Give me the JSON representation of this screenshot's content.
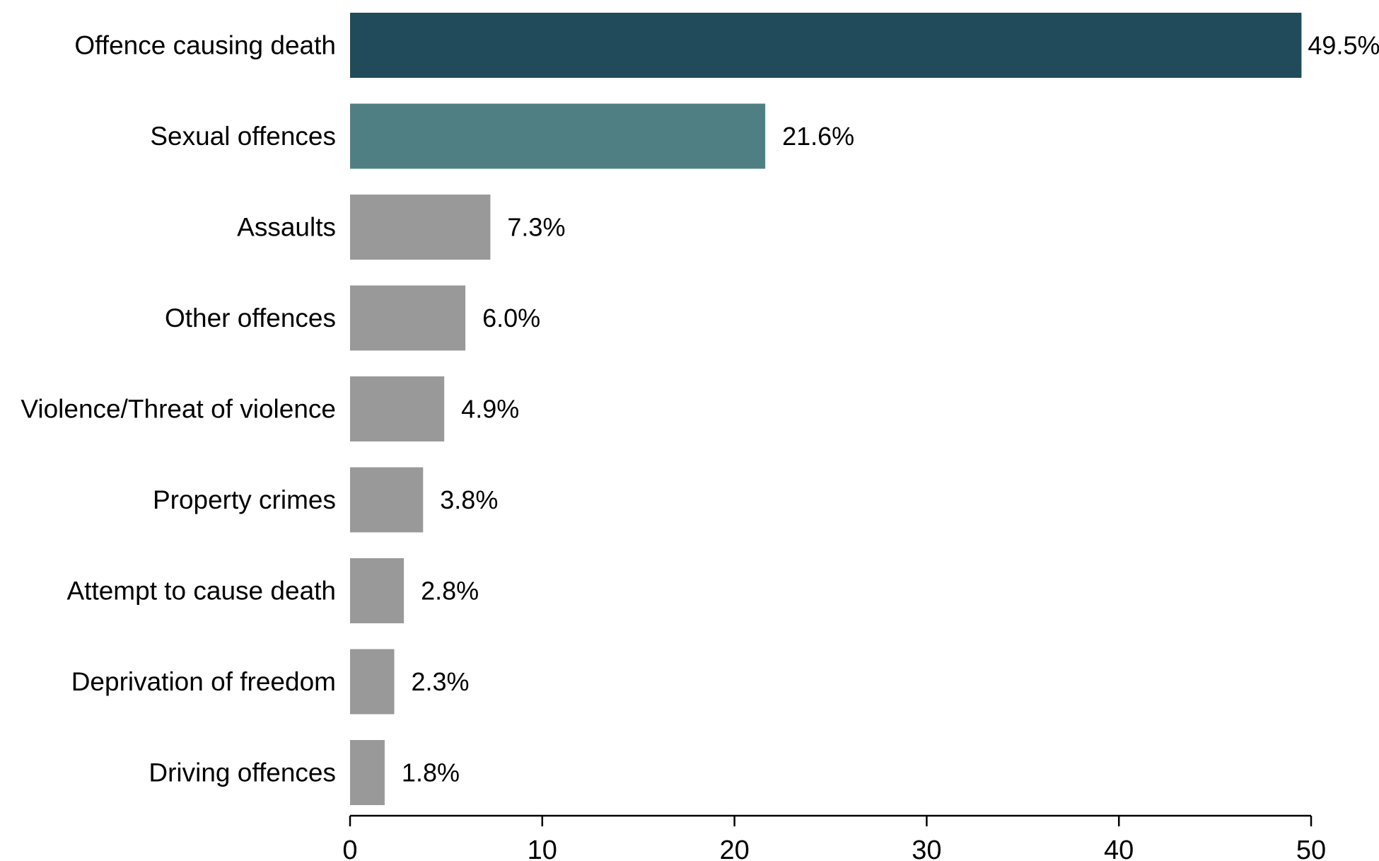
{
  "chart_data": {
    "type": "bar",
    "orientation": "horizontal",
    "categories": [
      "Offence causing death",
      "Sexual offences",
      "Assaults",
      "Other offences",
      "Violence/Threat of violence",
      "Property crimes",
      "Attempt to cause death",
      "Deprivation of freedom",
      "Driving offences"
    ],
    "values": [
      49.5,
      21.6,
      7.3,
      6.0,
      4.9,
      3.8,
      2.8,
      2.3,
      1.8
    ],
    "value_labels": [
      "49.5%",
      "21.6%",
      "7.3%",
      "6.0%",
      "4.9%",
      "3.8%",
      "2.8%",
      "2.3%",
      "1.8%"
    ],
    "colors": [
      "#214b5a",
      "#4f7f83",
      "#999999",
      "#999999",
      "#999999",
      "#999999",
      "#999999",
      "#999999",
      "#999999"
    ],
    "xlim": [
      0,
      50
    ],
    "xticks": [
      0,
      10,
      20,
      30,
      40,
      50
    ],
    "xtick_labels": [
      "0",
      "10",
      "20",
      "30",
      "40",
      "50"
    ],
    "title": "",
    "xlabel": "",
    "ylabel": "",
    "grid": false,
    "legend": "none"
  }
}
